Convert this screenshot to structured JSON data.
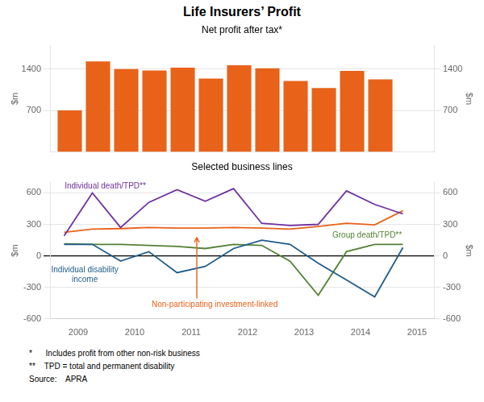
{
  "title": "Life Insurers’ Profit",
  "footnotes": [
    "*      Includes profit from other non-risk business",
    "**    TPD = total and permanent disability",
    "Source:    APRA"
  ],
  "chart_data": [
    {
      "type": "bar",
      "subtitle": "Net profit after tax*",
      "x": [
        2008.85,
        2009.35,
        2009.85,
        2010.35,
        2010.85,
        2011.35,
        2011.85,
        2012.35,
        2012.85,
        2013.35,
        2013.85,
        2014.35
      ],
      "values": [
        700,
        1530,
        1400,
        1375,
        1425,
        1240,
        1465,
        1415,
        1200,
        1080,
        1370,
        1225
      ],
      "color": "#E8621A",
      "xlim": [
        2008.5,
        2015.3
      ],
      "ylim": [
        0,
        1800
      ],
      "yticks": [
        700,
        1400
      ],
      "y2lim": [
        0,
        1800
      ],
      "y2ticks": [
        700,
        1400
      ],
      "ylabel": "$m",
      "y2label": "$m",
      "grid": true,
      "tick_labels": "y"
    },
    {
      "type": "line",
      "subtitle": "Selected business lines",
      "x": [
        2008.75,
        2009.25,
        2009.75,
        2010.25,
        2010.75,
        2011.25,
        2011.75,
        2012.25,
        2012.75,
        2013.25,
        2013.75,
        2014.25,
        2014.75
      ],
      "series": [
        {
          "color": "#7030A0",
          "values": [
            190,
            600,
            270,
            510,
            630,
            520,
            640,
            310,
            290,
            300,
            620,
            490,
            400
          ]
        },
        {
          "color": "#1F5C8B",
          "values": [
            110,
            110,
            -50,
            40,
            -160,
            -100,
            70,
            150,
            110,
            -70,
            -230,
            -390,
            80
          ]
        },
        {
          "color": "#538135",
          "values": [
            115,
            110,
            110,
            100,
            90,
            70,
            110,
            100,
            -50,
            -375,
            40,
            110,
            110
          ]
        },
        {
          "color": "#E8621A",
          "values": [
            225,
            255,
            260,
            270,
            265,
            265,
            270,
            265,
            255,
            280,
            310,
            295,
            430
          ]
        }
      ],
      "xlim": [
        2008.5,
        2015.3
      ],
      "xticks": [
        2009,
        2010,
        2011,
        2012,
        2013,
        2014,
        2015
      ],
      "ylim": [
        -600,
        700
      ],
      "yticks": [
        -600,
        -300,
        0,
        300,
        600
      ],
      "y2lim": [
        -600,
        700
      ],
      "y2ticks": [
        -600,
        -300,
        0,
        300,
        600
      ],
      "ylabel": "$m",
      "y2label": "$m",
      "grid": true,
      "annotations": [
        {
          "text": "Individual death/TPD**",
          "x": 2008.76,
          "y": 645,
          "color": "#7030A0"
        },
        {
          "text": "Individual disability\nincome",
          "x": 2008.52,
          "y": -155,
          "color": "#1F5C8B"
        },
        {
          "text": "Group death/TPD**",
          "x": 2013.5,
          "y": 175,
          "color": "#538135"
        },
        {
          "text": "Non-participating investment-linked",
          "x": 2010.3,
          "y": -490,
          "color": "#E8621A",
          "arrow_to": [
            2011.1,
            200
          ]
        }
      ]
    }
  ]
}
